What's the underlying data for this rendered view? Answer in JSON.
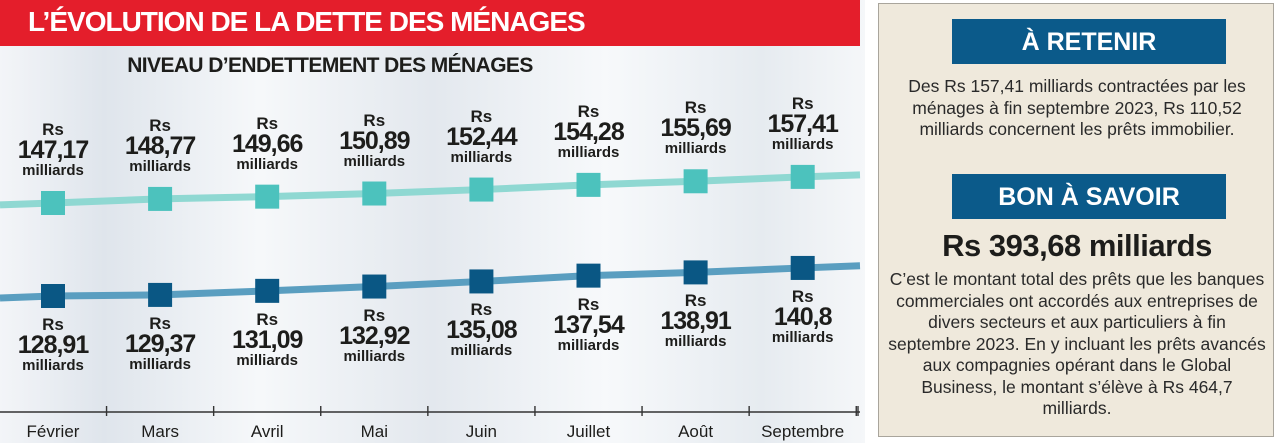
{
  "header": {
    "title": "L’ÉVOLUTION DE LA DETTE DES MÉNAGES"
  },
  "chart_data": {
    "type": "line",
    "subtitle": "NIVEAU D’ENDETTEMENT DES MÉNAGES",
    "categories": [
      "Février",
      "Mars",
      "Avril",
      "Mai",
      "Juin",
      "Juillet",
      "Août",
      "Septembre"
    ],
    "currency_prefix": "Rs",
    "unit": "milliards",
    "series": [
      {
        "values": [
          147.17,
          148.77,
          149.66,
          150.89,
          152.44,
          154.28,
          155.69,
          157.41
        ],
        "labels": [
          "147,17",
          "148,77",
          "149,66",
          "150,89",
          "152,44",
          "154,28",
          "155,69",
          "157,41"
        ],
        "line_color": "#8fd8d2",
        "marker_color": "#4cc2bd",
        "label_position": "above"
      },
      {
        "values": [
          128.91,
          129.37,
          131.09,
          132.92,
          135.08,
          137.54,
          138.91,
          140.8
        ],
        "labels": [
          "128,91",
          "129,37",
          "131,09",
          "132,92",
          "135,08",
          "137,54",
          "138,91",
          "140,8"
        ],
        "line_color": "#5a9ec0",
        "marker_color": "#0a5784",
        "label_position": "below"
      }
    ],
    "grid": false,
    "legend": "none"
  },
  "side": {
    "retenir_title": "À RETENIR",
    "retenir_text": "Des Rs 157,41 milliards contractées par les ménages à fin septembre 2023, Rs 110,52 milliards concernent les prêts immobilier.",
    "savoir_title": "BON À SAVOIR",
    "savoir_amount": "Rs 393,68 milliards",
    "savoir_text": "C’est le montant total des prêts que les banques commerciales ont accordés aux entreprises de divers secteurs et aux particuliers à fin septembre 2023. En y incluant les prêts avancés aux compagnies opérant dans le Global Business, le montant s’élève à Rs 464,7 milliards."
  },
  "colors": {
    "banner": "#e41e2b",
    "panel_heading": "#0b5a8a",
    "panel_bg": "#efe9dc"
  }
}
